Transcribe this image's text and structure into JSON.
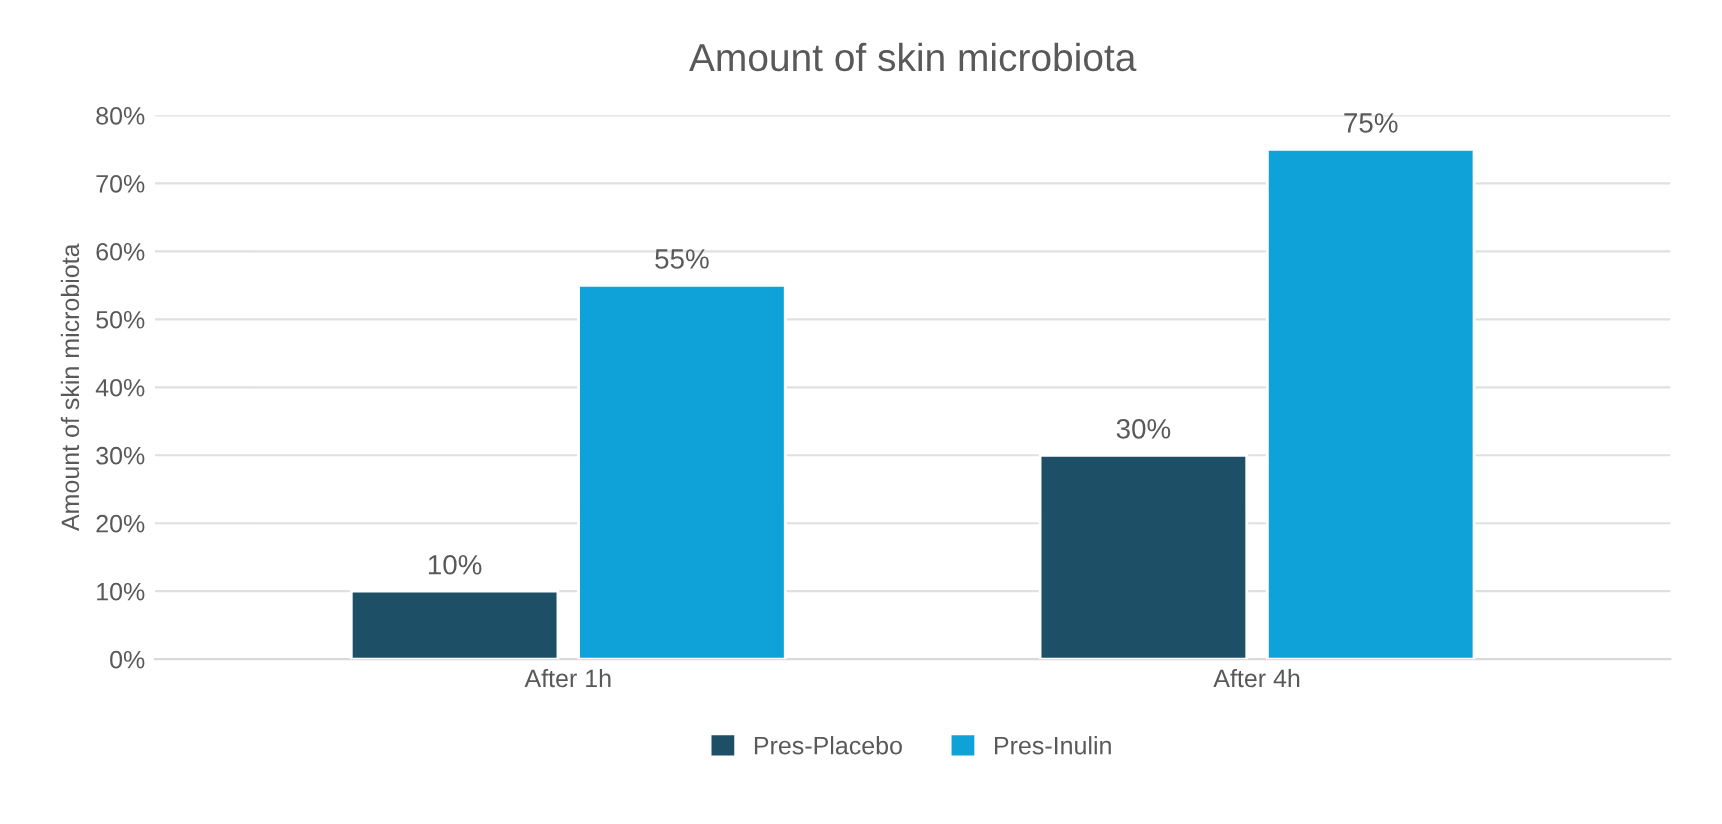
{
  "chart_data": {
    "type": "bar",
    "title": "Amount of skin microbiota",
    "ylabel": "Amount of skin microbiota",
    "categories": [
      "After 1h",
      "After 4h"
    ],
    "series": [
      {
        "name": "Pres-Placebo",
        "color": "#1d4f66",
        "values": [
          10,
          30
        ],
        "value_labels": [
          "10%",
          "30%"
        ]
      },
      {
        "name": "Pres-Inulin",
        "color": "#0fa2d8",
        "values": [
          55,
          75
        ],
        "value_labels": [
          "55%",
          "75%"
        ]
      }
    ],
    "ylim": [
      0,
      80
    ],
    "yticks": [
      {
        "value": 0,
        "label": "0%"
      },
      {
        "value": 10,
        "label": "10%"
      },
      {
        "value": 20,
        "label": "20%"
      },
      {
        "value": 30,
        "label": "30%"
      },
      {
        "value": 40,
        "label": "40%"
      },
      {
        "value": 50,
        "label": "50%"
      },
      {
        "value": 60,
        "label": "60%"
      },
      {
        "value": 70,
        "label": "70%"
      },
      {
        "value": 80,
        "label": "80%"
      }
    ],
    "grid": "y",
    "legend": "bottom"
  }
}
